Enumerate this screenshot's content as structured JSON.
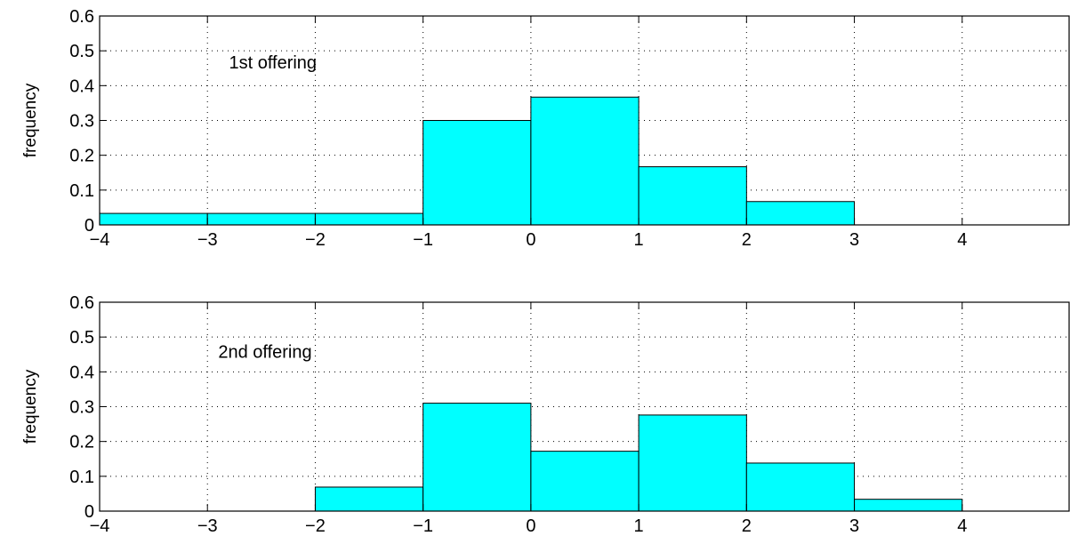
{
  "chart_data": [
    {
      "type": "bar",
      "annotation": "1st offering",
      "ylabel": "frequency",
      "xlabel": "",
      "xlim": [
        -4,
        5
      ],
      "ylim": [
        0,
        0.6
      ],
      "grid": true,
      "bar_color": "#00FFFF",
      "x_ticks": [
        "−4",
        "−3",
        "−2",
        "−1",
        "0",
        "1",
        "2",
        "3",
        "4"
      ],
      "y_ticks": [
        "0",
        "0.1",
        "0.2",
        "0.3",
        "0.4",
        "0.5",
        "0.6"
      ],
      "bins": [
        {
          "x0": -4,
          "x1": -3,
          "value": 0.033
        },
        {
          "x0": -3,
          "x1": -2,
          "value": 0.033
        },
        {
          "x0": -2,
          "x1": -1,
          "value": 0.033
        },
        {
          "x0": -1,
          "x1": 0,
          "value": 0.3
        },
        {
          "x0": 0,
          "x1": 1,
          "value": 0.367
        },
        {
          "x0": 1,
          "x1": 2,
          "value": 0.167
        },
        {
          "x0": 2,
          "x1": 3,
          "value": 0.067
        },
        {
          "x0": 3,
          "x1": 4,
          "value": 0
        },
        {
          "x0": 4,
          "x1": 5,
          "value": 0
        }
      ]
    },
    {
      "type": "bar",
      "annotation": "2nd offering",
      "ylabel": "frequency",
      "xlabel": "",
      "xlim": [
        -4,
        5
      ],
      "ylim": [
        0,
        0.6
      ],
      "grid": true,
      "bar_color": "#00FFFF",
      "x_ticks": [
        "−4",
        "−3",
        "−2",
        "−1",
        "0",
        "1",
        "2",
        "3",
        "4"
      ],
      "y_ticks": [
        "0",
        "0.1",
        "0.2",
        "0.3",
        "0.4",
        "0.5",
        "0.6"
      ],
      "bins": [
        {
          "x0": -4,
          "x1": -3,
          "value": 0
        },
        {
          "x0": -3,
          "x1": -2,
          "value": 0
        },
        {
          "x0": -2,
          "x1": -1,
          "value": 0.069
        },
        {
          "x0": -1,
          "x1": 0,
          "value": 0.31
        },
        {
          "x0": 0,
          "x1": 1,
          "value": 0.172
        },
        {
          "x0": 1,
          "x1": 2,
          "value": 0.276
        },
        {
          "x0": 2,
          "x1": 3,
          "value": 0.138
        },
        {
          "x0": 3,
          "x1": 4,
          "value": 0.034
        },
        {
          "x0": 4,
          "x1": 5,
          "value": 0
        }
      ]
    }
  ]
}
